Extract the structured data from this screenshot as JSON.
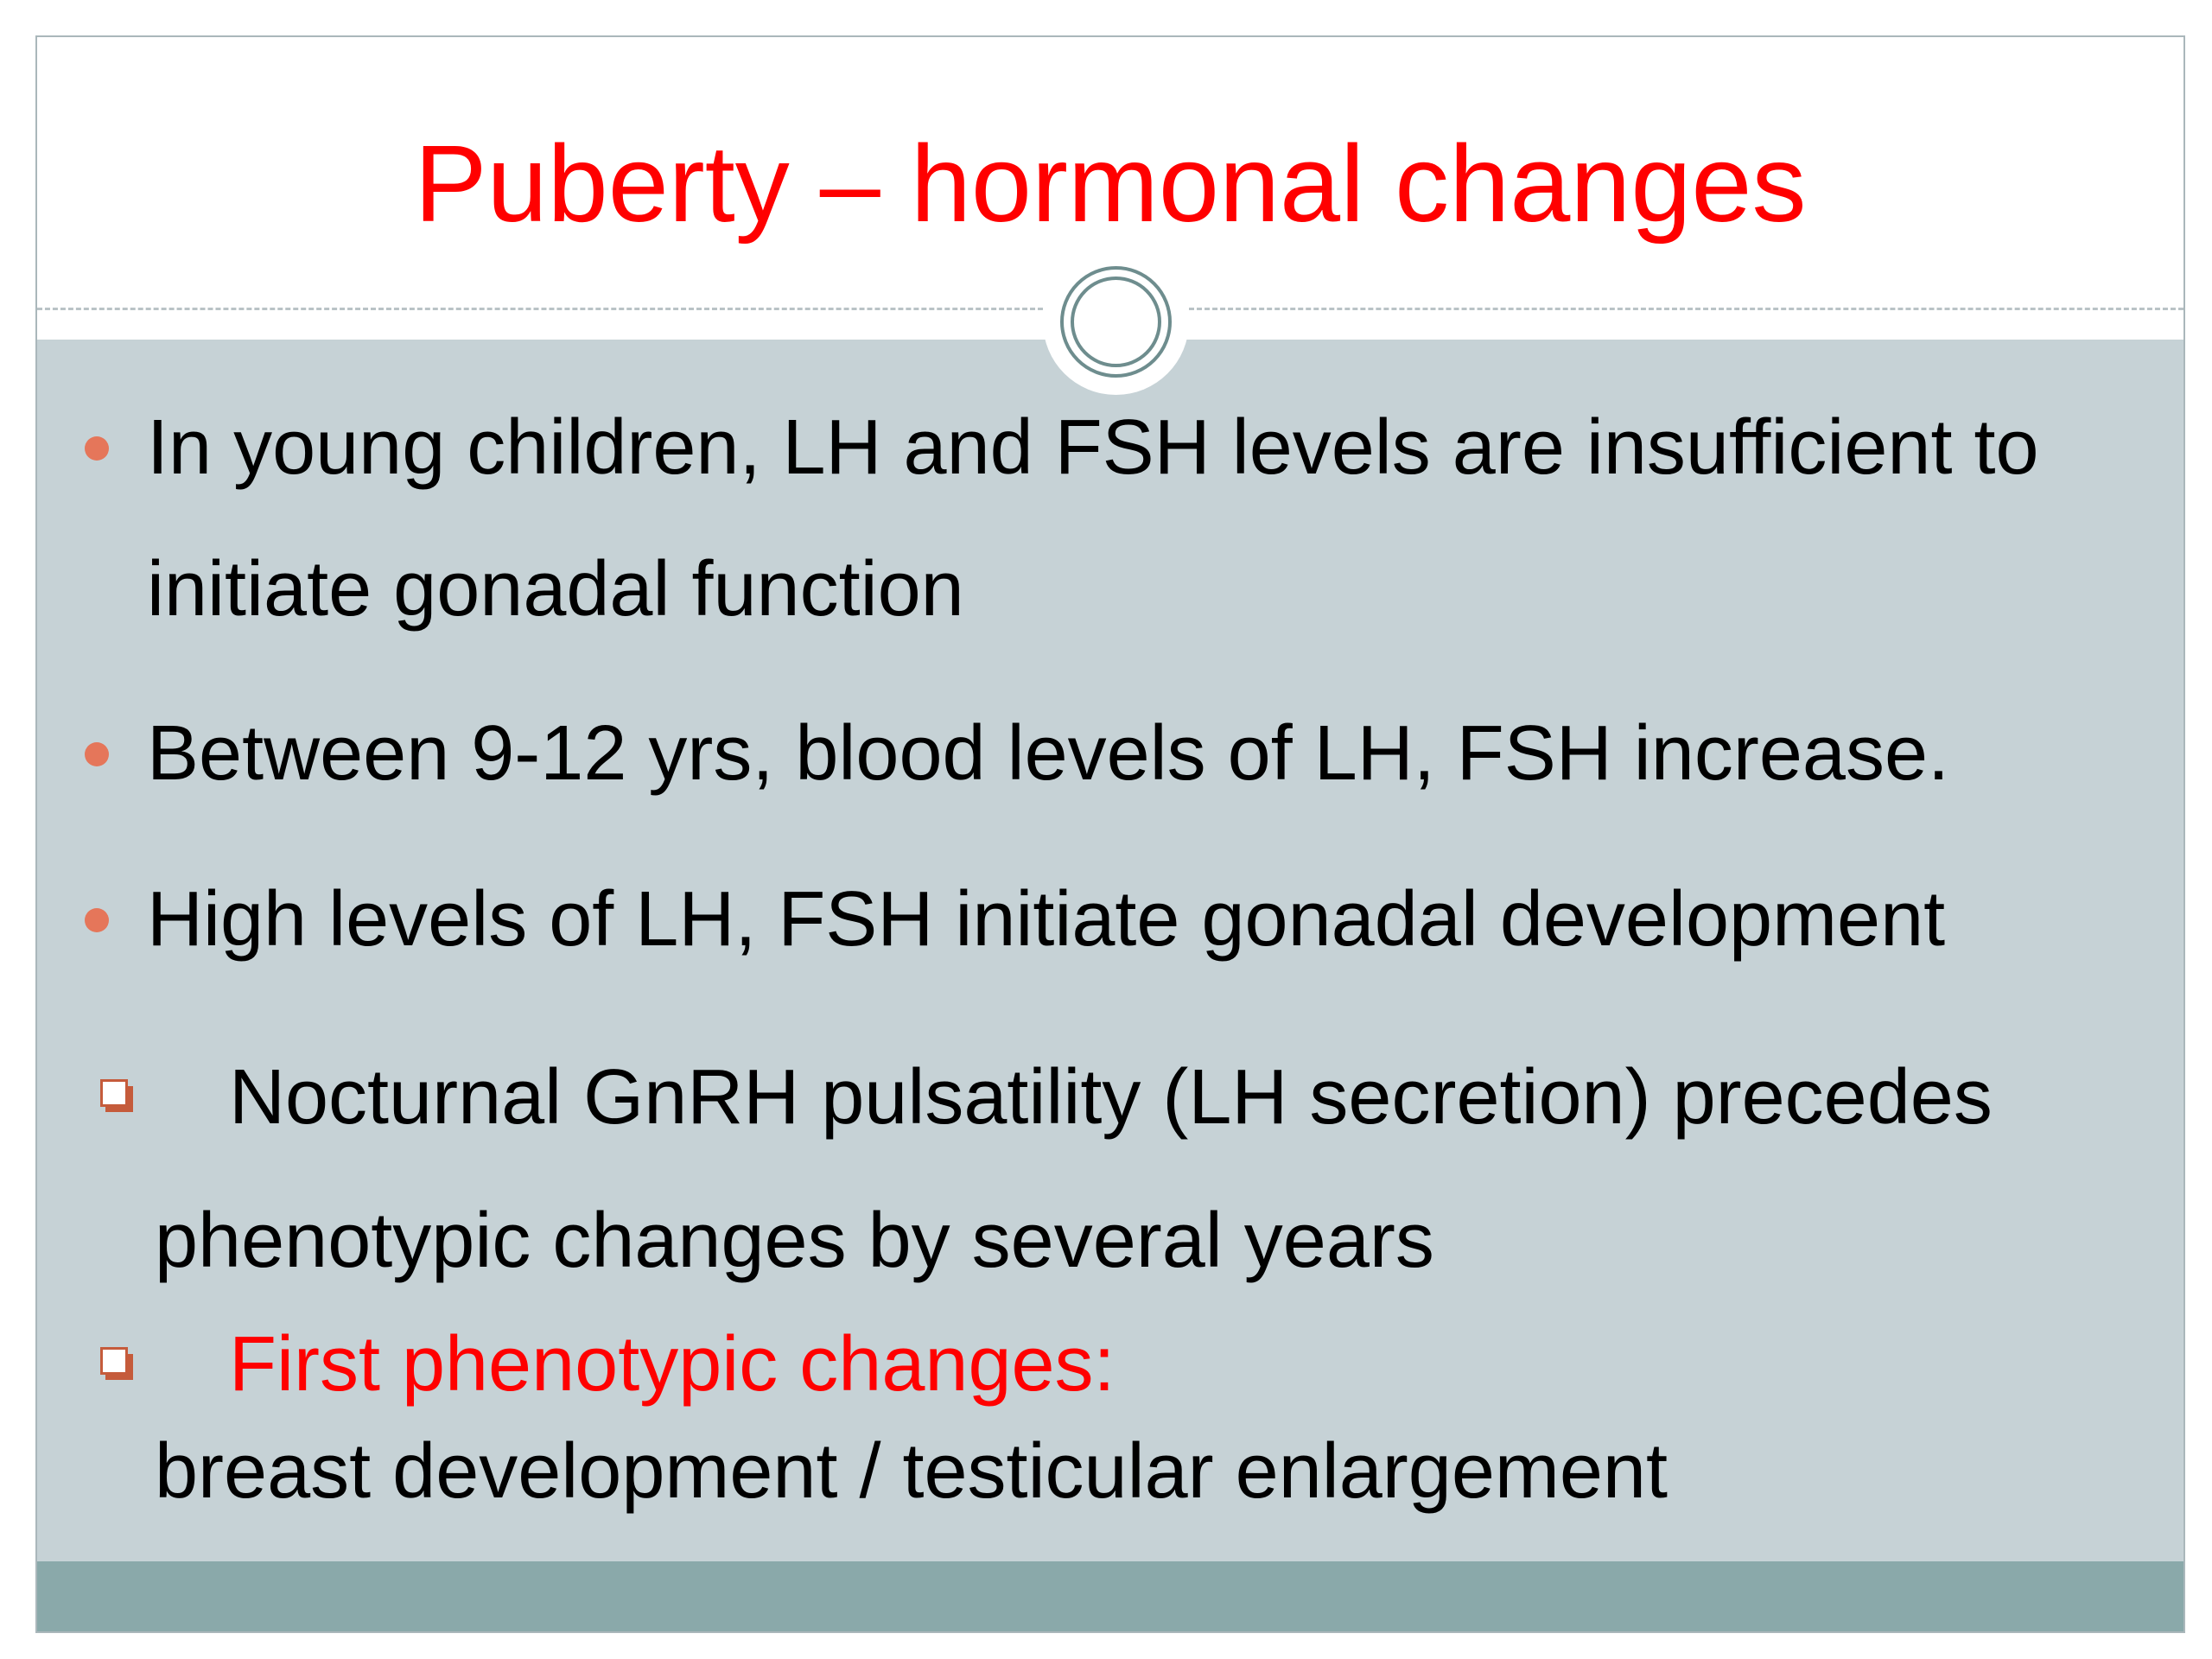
{
  "slide": {
    "title": "Puberty – hormonal changes",
    "bullets": [
      {
        "line1": "In young children, LH and FSH levels are insufficient to",
        "line2": "initiate gonadal function"
      },
      {
        "line1": "Between 9-12 yrs, blood levels of LH, FSH increase."
      },
      {
        "line1": "High levels of LH, FSH initiate gonadal development"
      }
    ],
    "sub_bullets": [
      {
        "line1": "Nocturnal GnRH pulsatility (LH secretion) precedes",
        "line2": "phenotypic changes by several years"
      },
      {
        "line1": "First phenotypic changes:",
        "line2": "breast development / testicular enlargement"
      }
    ]
  },
  "icons": {
    "bullet": "round-dot-bullet-icon",
    "sub_bullet": "square-checkbox-bullet-icon",
    "ornament": "double-ring-circle-icon"
  },
  "colors": {
    "title": "#ff0000",
    "body_text": "#000000",
    "highlight_text": "#ff0000",
    "content_background": "#c6d2d6",
    "footer_band": "#8aa9aa",
    "bullet_dot": "#e5765a",
    "sub_bullet_square": "#c55b3b"
  }
}
